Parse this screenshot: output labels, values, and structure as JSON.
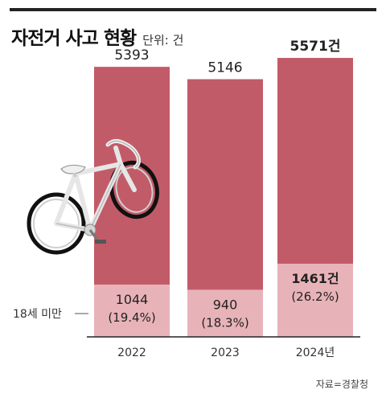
{
  "header": {
    "title": "자전거 사고 현황",
    "unit_label": "단위: 건"
  },
  "source": "자료=경찰청",
  "colors": {
    "bar_total": "#c25b68",
    "bar_minor": "#e8b3b8",
    "frame": "#222222"
  },
  "chart_data": {
    "type": "bar",
    "stacked": true,
    "title": "자전거 사고 현황",
    "unit": "단위: 건",
    "categories": [
      "2022",
      "2023",
      "2024년"
    ],
    "series": [
      {
        "name": "18세 미만",
        "values": [
          1044,
          940,
          1461
        ]
      }
    ],
    "totals": [
      5393,
      5146,
      5571
    ],
    "total_labels": [
      "5393",
      "5146",
      "5571건"
    ],
    "minor_labels": [
      "1044",
      "940",
      "1461건"
    ],
    "share_labels": [
      "(19.4%)",
      "(18.3%)",
      "(26.2%)"
    ],
    "highlight_index": 2,
    "ylim": [
      0,
      5700
    ],
    "legend": [
      "18세 미만"
    ]
  }
}
